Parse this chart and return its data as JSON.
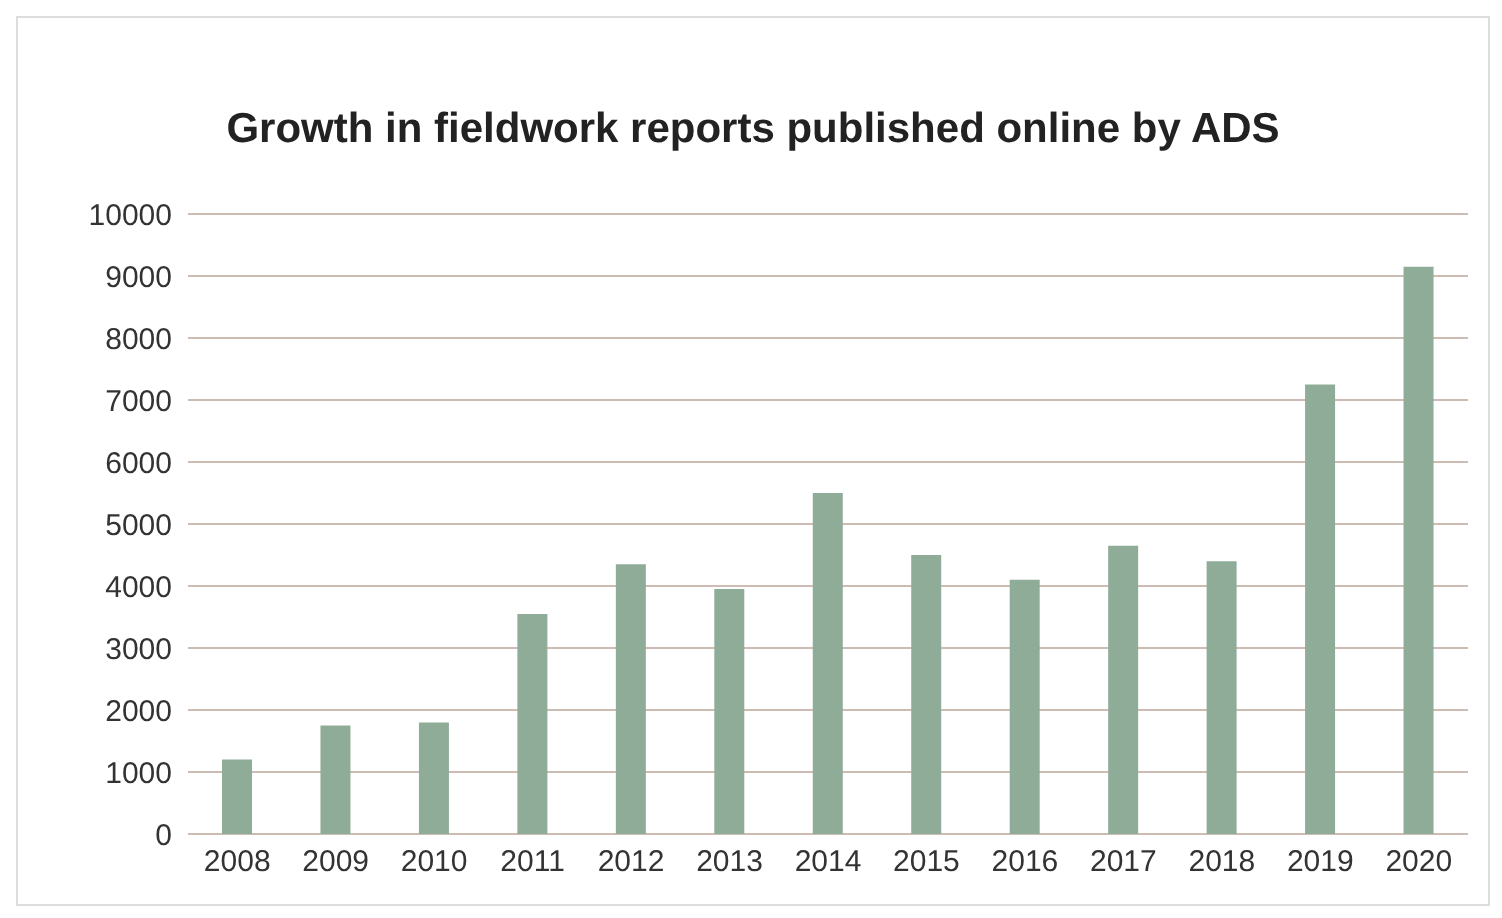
{
  "chart_data": {
    "type": "bar",
    "title": "Growth in fieldwork reports published online by ADS",
    "categories": [
      "2008",
      "2009",
      "2010",
      "2011",
      "2012",
      "2013",
      "2014",
      "2015",
      "2016",
      "2017",
      "2018",
      "2019",
      "2020"
    ],
    "values": [
      1200,
      1750,
      1800,
      3550,
      4350,
      3950,
      5500,
      4500,
      4100,
      4650,
      4400,
      7250,
      9150
    ],
    "color": "#8fac98",
    "ylim": [
      0,
      10000
    ],
    "yticks": [
      0,
      1000,
      2000,
      3000,
      4000,
      5000,
      6000,
      7000,
      8000,
      9000,
      10000
    ],
    "grid": "y"
  }
}
